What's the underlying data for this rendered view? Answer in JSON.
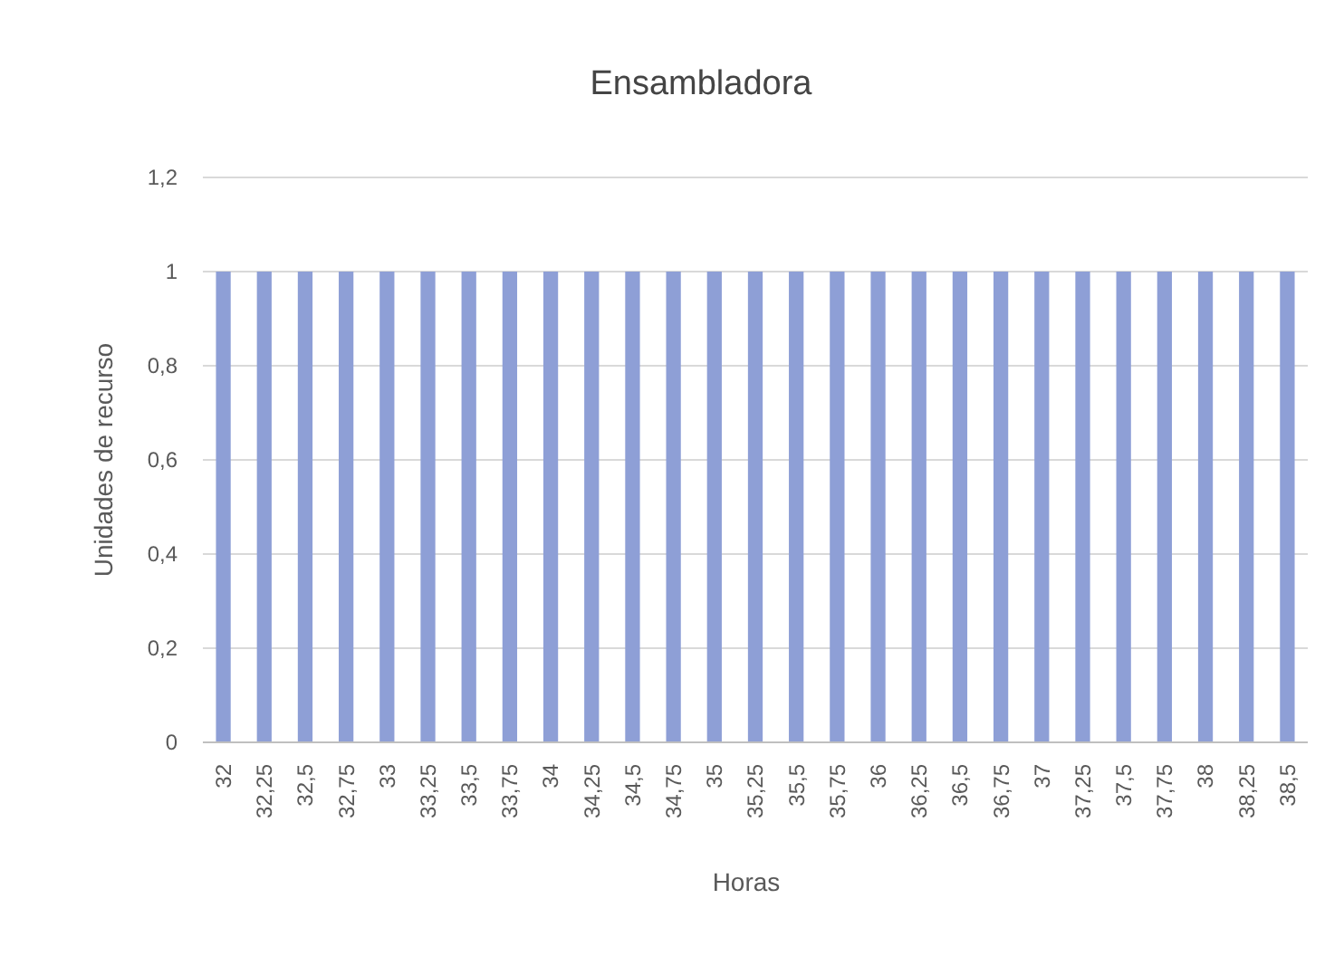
{
  "chart_data": {
    "type": "bar",
    "title": "Ensambladora",
    "xlabel": "Horas",
    "ylabel": "Unidades de recurso",
    "categories": [
      "32",
      "32,25",
      "32,5",
      "32,75",
      "33",
      "33,25",
      "33,5",
      "33,75",
      "34",
      "34,25",
      "34,5",
      "34,75",
      "35",
      "35,25",
      "35,5",
      "35,75",
      "36",
      "36,25",
      "36,5",
      "36,75",
      "37",
      "37,25",
      "37,5",
      "37,75",
      "38",
      "38,25",
      "38,5"
    ],
    "values": [
      1,
      1,
      1,
      1,
      1,
      1,
      1,
      1,
      1,
      1,
      1,
      1,
      1,
      1,
      1,
      1,
      1,
      1,
      1,
      1,
      1,
      1,
      1,
      1,
      1,
      1,
      1
    ],
    "color": "#8e9fd6",
    "ylim": [
      0,
      1.2
    ],
    "yticks": [
      {
        "value": 0,
        "label": "0"
      },
      {
        "value": 0.2,
        "label": "0,2"
      },
      {
        "value": 0.4,
        "label": "0,4"
      },
      {
        "value": 0.6,
        "label": "0,6"
      },
      {
        "value": 0.8,
        "label": "0,8"
      },
      {
        "value": 1,
        "label": "1"
      },
      {
        "value": 1.2,
        "label": "1,2"
      }
    ],
    "grid": "y"
  }
}
